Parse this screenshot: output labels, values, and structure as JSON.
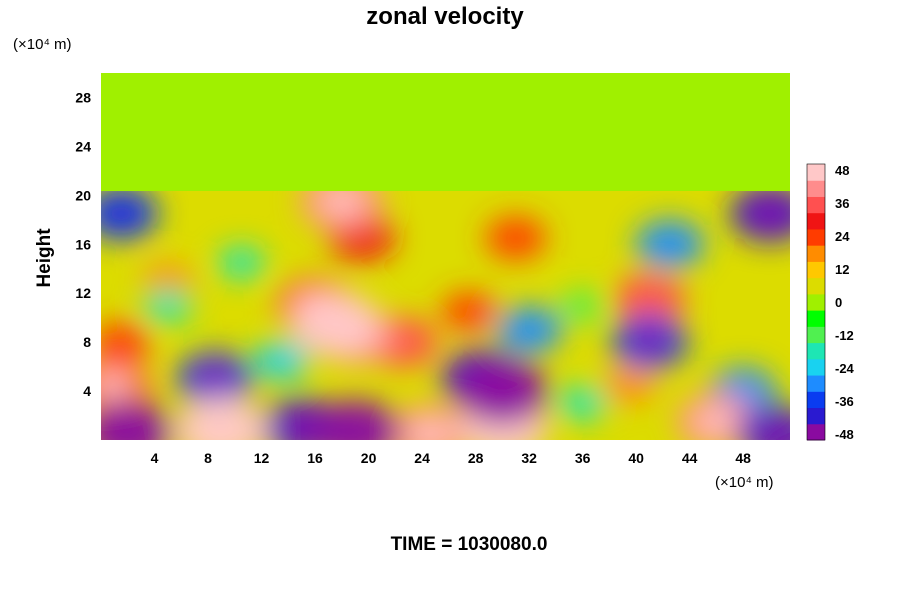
{
  "chart_data": {
    "type": "heatmap",
    "title": "zonal velocity",
    "ylabel": "Height",
    "y_unit": "(×10⁴ m)",
    "x_unit": "(×10⁴ m)",
    "xlim": [
      0,
      51.5
    ],
    "ylim": [
      0,
      30
    ],
    "x_ticks": [
      4,
      8,
      12,
      16,
      20,
      24,
      28,
      32,
      36,
      40,
      44,
      48
    ],
    "y_ticks": [
      4,
      8,
      12,
      16,
      20,
      24,
      28
    ],
    "colorbar": {
      "ticks": [
        48,
        36,
        24,
        12,
        0,
        -12,
        -24,
        -36,
        -48
      ],
      "min": -48,
      "max": 48,
      "colors": [
        "#8a0aa0",
        "#2a1ad0",
        "#0a3cf0",
        "#1e8cff",
        "#19d2f0",
        "#1ee6b4",
        "#50f050",
        "#00ff00",
        "#a0f000",
        "#dcdc00",
        "#ffc800",
        "#ff8c00",
        "#ff3c00",
        "#f01414",
        "#ff5050",
        "#ff8c8c",
        "#ffc8c8"
      ]
    },
    "upper_layer": {
      "y_from": 20.5,
      "y_to": 30,
      "value": 0
    },
    "features": [
      {
        "x": 17.5,
        "y": 9.5,
        "value": 48
      },
      {
        "x": 16,
        "y": 11,
        "value": 38
      },
      {
        "x": 19,
        "y": 8.5,
        "value": 40
      },
      {
        "x": 18,
        "y": 19.5,
        "value": 42
      },
      {
        "x": 19.5,
        "y": 16.5,
        "value": 30
      },
      {
        "x": 22.5,
        "y": 8,
        "value": 34
      },
      {
        "x": 1.5,
        "y": 8,
        "value": 24
      },
      {
        "x": 0.8,
        "y": 4.5,
        "value": 38
      },
      {
        "x": 31,
        "y": 16.5,
        "value": 26
      },
      {
        "x": 41,
        "y": 11.5,
        "value": 34
      },
      {
        "x": 39.5,
        "y": 4.5,
        "value": 20
      },
      {
        "x": 46,
        "y": 1.5,
        "value": 40
      },
      {
        "x": 30,
        "y": 1.2,
        "value": 50
      },
      {
        "x": 9,
        "y": 0.8,
        "value": 50
      },
      {
        "x": 24.5,
        "y": 0.5,
        "value": 40
      },
      {
        "x": 27.5,
        "y": 10.5,
        "value": 22
      },
      {
        "x": 5,
        "y": 13,
        "value": 18
      },
      {
        "x": 28.5,
        "y": 5,
        "value": -42
      },
      {
        "x": 30,
        "y": 4,
        "value": -50
      },
      {
        "x": 32,
        "y": 9,
        "value": -30
      },
      {
        "x": 8.5,
        "y": 5,
        "value": -38
      },
      {
        "x": 1.5,
        "y": 18.5,
        "value": -36
      },
      {
        "x": 5,
        "y": 11,
        "value": -18
      },
      {
        "x": 13.5,
        "y": 6.5,
        "value": -22
      },
      {
        "x": 10.5,
        "y": 14.5,
        "value": -16
      },
      {
        "x": 15,
        "y": 1,
        "value": -42
      },
      {
        "x": 2,
        "y": 0.6,
        "value": -48
      },
      {
        "x": 19,
        "y": 0.7,
        "value": -48
      },
      {
        "x": 48,
        "y": 4,
        "value": -30
      },
      {
        "x": 50,
        "y": 18.5,
        "value": -40
      },
      {
        "x": 42.5,
        "y": 16,
        "value": -32
      },
      {
        "x": 41,
        "y": 8,
        "value": -38
      },
      {
        "x": 36,
        "y": 11,
        "value": -14
      },
      {
        "x": 36,
        "y": 3,
        "value": -18
      },
      {
        "x": 50.5,
        "y": 0.5,
        "value": -40
      }
    ]
  },
  "footer": {
    "time_label": "TIME = 1030080.0"
  }
}
